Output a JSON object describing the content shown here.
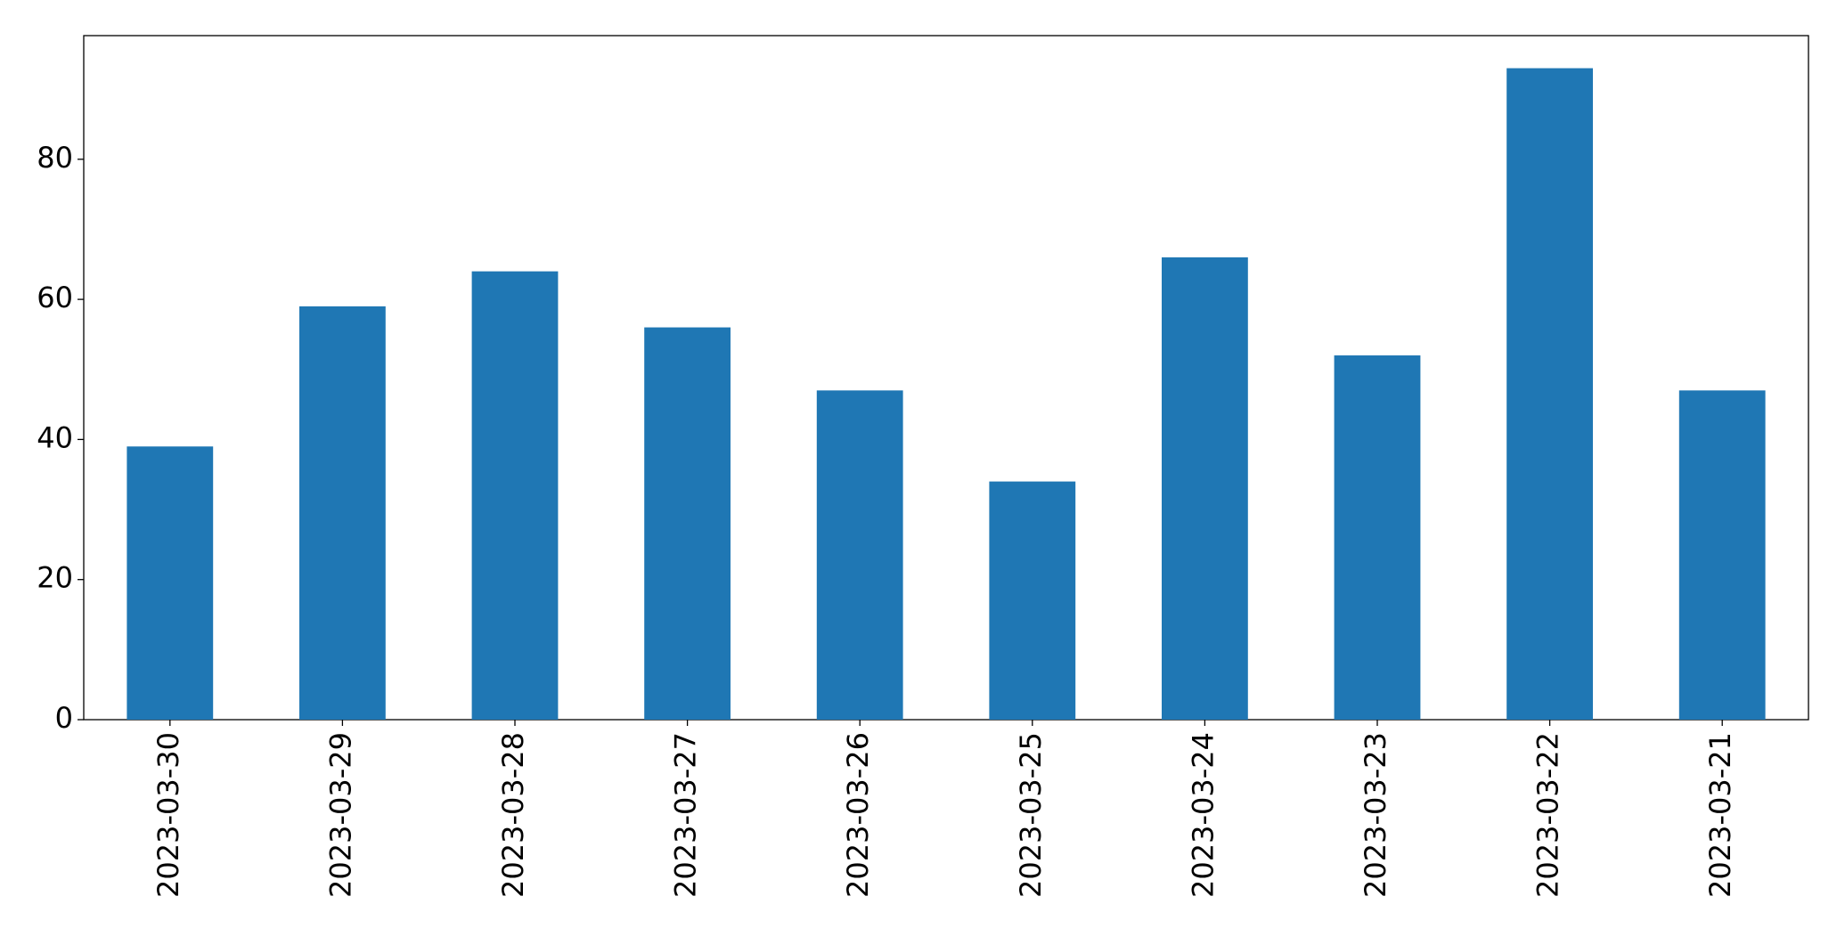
{
  "chart_data": {
    "type": "bar",
    "categories": [
      "2023-03-30",
      "2023-03-29",
      "2023-03-28",
      "2023-03-27",
      "2023-03-26",
      "2023-03-25",
      "2023-03-24",
      "2023-03-23",
      "2023-03-22",
      "2023-03-21"
    ],
    "values": [
      39,
      59,
      64,
      56,
      47,
      34,
      66,
      52,
      93,
      47
    ],
    "color": "#1f77b4",
    "ylim": [
      0,
      97.65
    ],
    "yticks": [
      0,
      20,
      40,
      60,
      80
    ],
    "grid": false
  }
}
